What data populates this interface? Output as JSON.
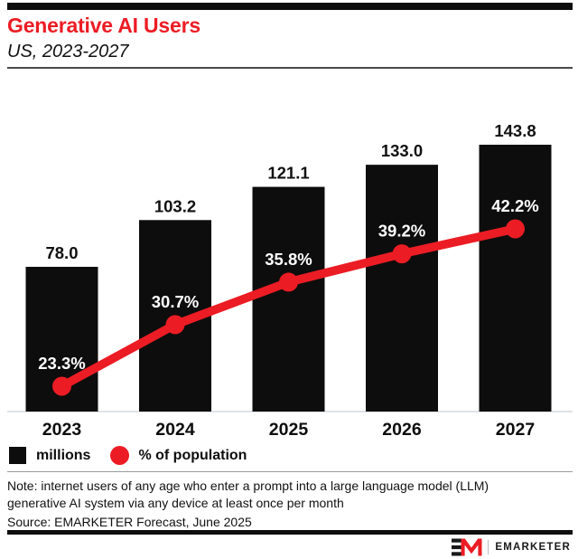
{
  "header": {
    "title": "Generative AI Users",
    "subtitle": "US, 2023-2027"
  },
  "chart_data": {
    "type": "bar",
    "title": "Generative AI Users",
    "subtitle": "US, 2023-2027",
    "categories": [
      "2023",
      "2024",
      "2025",
      "2026",
      "2027"
    ],
    "series": [
      {
        "name": "millions",
        "type": "bar",
        "values": [
          78.0,
          103.2,
          121.1,
          133.0,
          143.8
        ],
        "labels": [
          "78.0",
          "103.2",
          "121.1",
          "133.0",
          "143.8"
        ]
      },
      {
        "name": "% of population",
        "type": "line",
        "values": [
          23.3,
          30.7,
          35.8,
          39.2,
          42.2
        ],
        "labels": [
          "23.3%",
          "30.7%",
          "35.8%",
          "39.2%",
          "42.2%"
        ]
      }
    ],
    "xlabel": "",
    "ylabel": "",
    "grid": false,
    "legend_position": "bottom"
  },
  "legend": {
    "bar_label": "millions",
    "line_label": "% of population"
  },
  "footer": {
    "note_line1": "Note: internet users of any age who enter a prompt into a large language model (LLM)",
    "note_line2": "generative AI system via any device at least once per month",
    "source": "Source: EMARKETER Forecast, June 2025"
  },
  "logo": {
    "wordmark": "EMARKETER"
  },
  "colors": {
    "accent_red": "#ec1c24",
    "bar_black": "#0d0d0d",
    "pct_label_white": "#ffffff",
    "axis_line_gray": "#dfe3e8",
    "text_black": "#111111"
  }
}
